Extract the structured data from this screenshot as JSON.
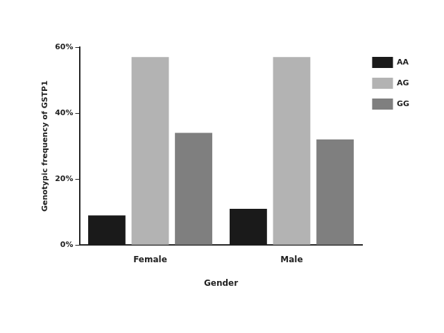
{
  "chart_data": {
    "type": "bar",
    "x_label": "Gender",
    "y_label": "Genotypic frequency of GSTP1",
    "categories": [
      "Female",
      "Male"
    ],
    "series": [
      {
        "name": "AA",
        "color": "#1a1a1a",
        "values": [
          9,
          11
        ]
      },
      {
        "name": "AG",
        "color": "#b3b3b3",
        "values": [
          57,
          57
        ]
      },
      {
        "name": "GG",
        "color": "#7f7f7f",
        "values": [
          34,
          32
        ]
      }
    ],
    "ylim": [
      0,
      60
    ],
    "yticks": [
      {
        "value": 0,
        "label": "0%"
      },
      {
        "value": 20,
        "label": "20%"
      },
      {
        "value": 40,
        "label": "40%"
      },
      {
        "value": 60,
        "label": "60%"
      }
    ],
    "grid": false,
    "legend": "upper right"
  }
}
